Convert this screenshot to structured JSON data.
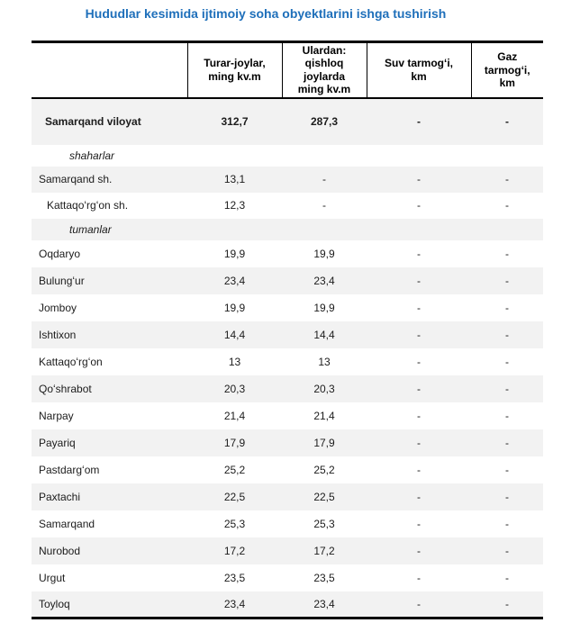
{
  "title": "Hududlar kesimida ijtimoiy soha obyektlarini ishga tushirish",
  "colors": {
    "title_text": "#1e6fba",
    "alt_row_background": "#f2f2f2",
    "border": "#000000"
  },
  "table": {
    "columns": [
      {
        "id": "region",
        "label": ""
      },
      {
        "id": "housing",
        "label": "Turar-joylar,\nming kv.m"
      },
      {
        "id": "rural_housing",
        "label": "Ulardan:\nqishloq\njoylarda\nming kv.m"
      },
      {
        "id": "water_network",
        "label": "Suv tarmogʻi,\nkm"
      },
      {
        "id": "gas_network",
        "label": "Gaz\ntarmogʻi,\nkm"
      }
    ],
    "rows": [
      {
        "name": "Samarqand viloyat",
        "type": "total",
        "values": [
          "312,7",
          "287,3",
          "-",
          "-"
        ]
      },
      {
        "name": "shaharlar",
        "type": "group",
        "values": [
          "",
          "",
          "",
          ""
        ]
      },
      {
        "name": "Samarqand sh.",
        "type": "city",
        "values": [
          "13,1",
          "-",
          "-",
          "-"
        ]
      },
      {
        "name": "Kattaqoʻrgʻon sh.",
        "type": "city-indented",
        "values": [
          "12,3",
          "-",
          "-",
          "-"
        ]
      },
      {
        "name": "tumanlar",
        "type": "group",
        "values": [
          "",
          "",
          "",
          ""
        ]
      },
      {
        "name": "Oqdaryo",
        "type": "district",
        "values": [
          "19,9",
          "19,9",
          "-",
          "-"
        ]
      },
      {
        "name": "Bulungʻur",
        "type": "district",
        "values": [
          "23,4",
          "23,4",
          "-",
          "-"
        ]
      },
      {
        "name": "Jomboy",
        "type": "district",
        "values": [
          "19,9",
          "19,9",
          "-",
          "-"
        ]
      },
      {
        "name": "Ishtixon",
        "type": "district",
        "values": [
          "14,4",
          "14,4",
          "-",
          "-"
        ]
      },
      {
        "name": "Kattaqoʻrgʻon",
        "type": "district",
        "values": [
          "13",
          "13",
          "-",
          "-"
        ]
      },
      {
        "name": "Qoʻshrabot",
        "type": "district",
        "values": [
          "20,3",
          "20,3",
          "-",
          "-"
        ]
      },
      {
        "name": "Narpay",
        "type": "district",
        "values": [
          "21,4",
          "21,4",
          "-",
          "-"
        ]
      },
      {
        "name": "Payariq",
        "type": "district",
        "values": [
          "17,9",
          "17,9",
          "-",
          "-"
        ]
      },
      {
        "name": "Pastdargʻom",
        "type": "district",
        "values": [
          "25,2",
          "25,2",
          "-",
          "-"
        ]
      },
      {
        "name": "Paxtachi",
        "type": "district",
        "values": [
          "22,5",
          "22,5",
          "-",
          "-"
        ]
      },
      {
        "name": "Samarqand",
        "type": "district",
        "values": [
          "25,3",
          "25,3",
          "-",
          "-"
        ]
      },
      {
        "name": "Nurobod",
        "type": "district",
        "values": [
          "17,2",
          "17,2",
          "-",
          "-"
        ]
      },
      {
        "name": "Urgut",
        "type": "district",
        "values": [
          "23,5",
          "23,5",
          "-",
          "-"
        ]
      },
      {
        "name": "Toyloq",
        "type": "district",
        "values": [
          "23,4",
          "23,4",
          "-",
          "-"
        ]
      }
    ]
  }
}
